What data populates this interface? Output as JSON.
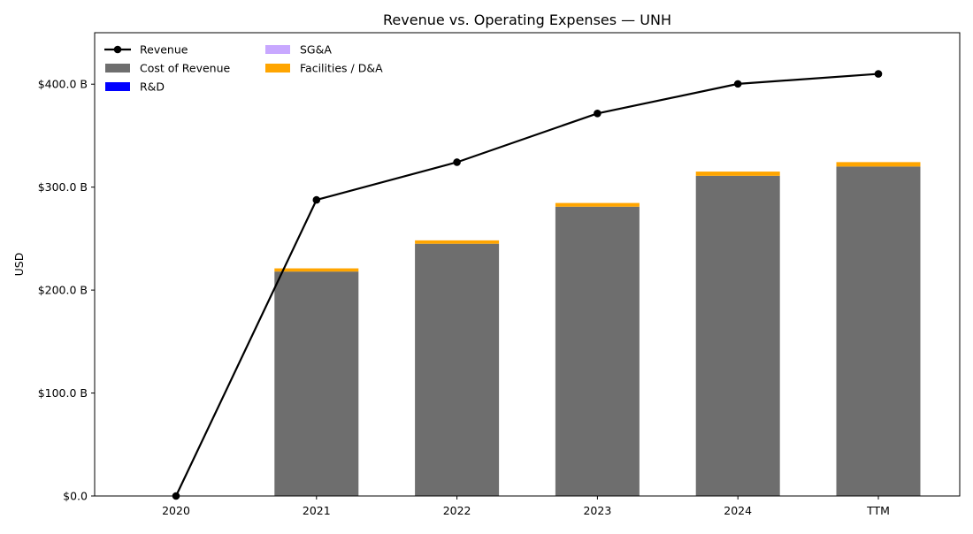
{
  "chart_data": {
    "type": "bar",
    "title": "Revenue vs. Operating Expenses — UNH",
    "xlabel": "",
    "ylabel": "USD",
    "ylim": [
      0,
      450
    ],
    "y_unit": "billions USD",
    "yticks": [
      0,
      100,
      200,
      300,
      400
    ],
    "ytick_labels": [
      "$0.0",
      "$100.0 B",
      "$200.0 B",
      "$300.0 B",
      "$400.0 B"
    ],
    "categories": [
      "2020",
      "2021",
      "2022",
      "2023",
      "2024",
      "TTM"
    ],
    "stacked_bars": [
      {
        "name": "Cost of Revenue",
        "color": "#6e6e6e",
        "values": [
          0,
          218,
          245,
          281,
          311,
          320
        ]
      },
      {
        "name": "R&D",
        "color": "#0000ff",
        "values": [
          0,
          0,
          0,
          0,
          0,
          0
        ]
      },
      {
        "name": "SG&A",
        "color": "#c8a8ff",
        "values": [
          0,
          0,
          0,
          0,
          0,
          0
        ]
      },
      {
        "name": "Facilities / D&A",
        "color": "#ffa500",
        "values": [
          0,
          3.1,
          3.3,
          3.6,
          4.1,
          4.3
        ]
      }
    ],
    "line": {
      "name": "Revenue",
      "color": "#000000",
      "values": [
        0,
        287.6,
        324.2,
        371.6,
        400.3,
        410
      ]
    },
    "legend": {
      "placement": "top-left",
      "columns": [
        [
          "Revenue",
          "Cost of Revenue",
          "R&D"
        ],
        [
          "SG&A",
          "Facilities / D&A"
        ]
      ]
    },
    "grid": false
  }
}
